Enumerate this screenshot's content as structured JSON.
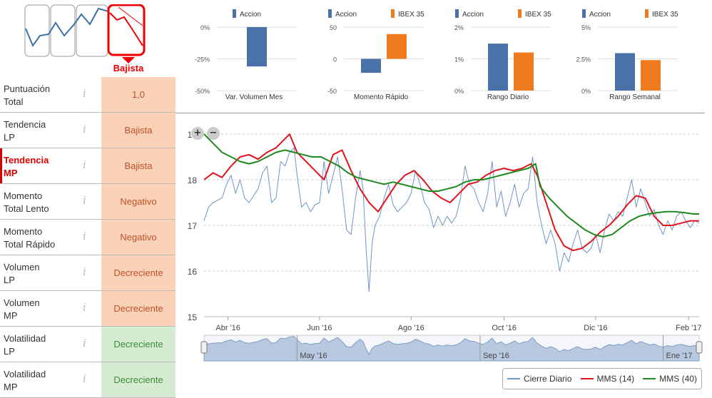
{
  "trend_selector": {
    "selected_label": "Bajista"
  },
  "metrics": [
    {
      "name": "Puntuación\nTotal",
      "value": "1,0",
      "status": "bad",
      "highlight": false
    },
    {
      "name": "Tendencia\nLP",
      "value": "Bajista",
      "status": "bad",
      "highlight": false
    },
    {
      "name": "Tendencia\nMP",
      "value": "Bajista",
      "status": "bad",
      "highlight": true
    },
    {
      "name": "Momento\nTotal Lento",
      "value": "Negativo",
      "status": "bad",
      "highlight": false
    },
    {
      "name": "Momento\nTotal Rápido",
      "value": "Negativo",
      "status": "bad",
      "highlight": false
    },
    {
      "name": "Volumen\nLP",
      "value": "Decreciente",
      "status": "bad",
      "highlight": false
    },
    {
      "name": "Volumen\nMP",
      "value": "Decreciente",
      "status": "bad",
      "highlight": false
    },
    {
      "name": "Volatilidad\nLP",
      "value": "Decreciente",
      "status": "good",
      "highlight": false
    },
    {
      "name": "Volatilidad\nMP",
      "value": "Decreciente",
      "status": "good",
      "highlight": false
    }
  ],
  "info_glyph": "i",
  "colors": {
    "accion": "#4a72a8",
    "ibex": "#f07a1e",
    "cierre": "#6f95c4",
    "mms14": "#e0141e",
    "mms40": "#1f8a1f",
    "navigator": "#b8c8de"
  },
  "chart_data": [
    {
      "type": "bar",
      "title": "Var. Volumen Mes",
      "legend": [
        "Accion"
      ],
      "yticks": [
        "0%",
        "-25%",
        "-50%"
      ],
      "ylim": [
        -50,
        0
      ],
      "series": [
        {
          "name": "Accion",
          "values": [
            -31
          ]
        }
      ]
    },
    {
      "type": "bar",
      "title": "Momento Rápido",
      "legend": [
        "Accion",
        "IBEX 35"
      ],
      "yticks": [
        "50",
        "0",
        "-50"
      ],
      "ylim": [
        -50,
        50
      ],
      "series": [
        {
          "name": "Accion",
          "values": [
            -22
          ]
        },
        {
          "name": "IBEX 35",
          "values": [
            39
          ]
        }
      ]
    },
    {
      "type": "bar",
      "title": "Rango Diario",
      "legend": [
        "Accion",
        "IBEX 35"
      ],
      "yticks": [
        "2%",
        "1%",
        "0%"
      ],
      "ylim": [
        0,
        2
      ],
      "series": [
        {
          "name": "Accion",
          "values": [
            1.48
          ]
        },
        {
          "name": "IBEX 35",
          "values": [
            1.2
          ]
        }
      ]
    },
    {
      "type": "bar",
      "title": "Rango Semanal",
      "legend": [
        "Accion",
        "IBEX 35"
      ],
      "yticks": [
        "5%",
        "2.5%",
        "0%"
      ],
      "ylim": [
        0,
        5
      ],
      "series": [
        {
          "name": "Accion",
          "values": [
            2.95
          ]
        },
        {
          "name": "IBEX 35",
          "values": [
            2.4
          ]
        }
      ]
    },
    {
      "type": "line",
      "title": "",
      "x_range_days": [
        0,
        330
      ],
      "ylim": [
        15,
        19
      ],
      "yticks": [
        "19",
        "18",
        "17",
        "16",
        "15"
      ],
      "xticks": [
        {
          "day": 16,
          "label": "Abr '16"
        },
        {
          "day": 77,
          "label": "Jun '16"
        },
        {
          "day": 138,
          "label": "Ago '16"
        },
        {
          "day": 200,
          "label": "Oct '16"
        },
        {
          "day": 261,
          "label": "Dic '16"
        },
        {
          "day": 323,
          "label": "Feb '17"
        }
      ],
      "navigator_labels": [
        {
          "day": 62,
          "label": "May '16"
        },
        {
          "day": 184,
          "label": "Sep '16"
        },
        {
          "day": 306,
          "label": "Ene '17"
        }
      ],
      "legend": [
        "Cierre Diario",
        "MMS (14)",
        "MMS (40)"
      ],
      "series": [
        {
          "name": "Cierre Diario",
          "points": [
            [
              0,
              17.1
            ],
            [
              3,
              17.4
            ],
            [
              6,
              17.5
            ],
            [
              9,
              17.55
            ],
            [
              12,
              17.6
            ],
            [
              15,
              17.9
            ],
            [
              18,
              18.1
            ],
            [
              21,
              17.7
            ],
            [
              24,
              18.0
            ],
            [
              27,
              17.6
            ],
            [
              30,
              17.5
            ],
            [
              33,
              17.65
            ],
            [
              36,
              17.8
            ],
            [
              39,
              18.15
            ],
            [
              42,
              18.3
            ],
            [
              45,
              17.5
            ],
            [
              48,
              17.6
            ],
            [
              51,
              18.4
            ],
            [
              54,
              18.3
            ],
            [
              57,
              18.6
            ],
            [
              60,
              18.7
            ],
            [
              62,
              18.1
            ],
            [
              65,
              17.4
            ],
            [
              68,
              17.5
            ],
            [
              71,
              17.3
            ],
            [
              74,
              17.45
            ],
            [
              77,
              17.5
            ],
            [
              80,
              18.4
            ],
            [
              83,
              17.7
            ],
            [
              86,
              18.1
            ],
            [
              89,
              18.5
            ],
            [
              92,
              17.8
            ],
            [
              95,
              16.9
            ],
            [
              98,
              16.8
            ],
            [
              101,
              17.6
            ],
            [
              104,
              18.2
            ],
            [
              106,
              17.8
            ],
            [
              108,
              16.5
            ],
            [
              110,
              15.55
            ],
            [
              112,
              16.6
            ],
            [
              114,
              17.0
            ],
            [
              117,
              17.2
            ],
            [
              120,
              17.6
            ],
            [
              123,
              17.9
            ],
            [
              126,
              17.45
            ],
            [
              129,
              17.3
            ],
            [
              132,
              17.4
            ],
            [
              135,
              17.5
            ],
            [
              138,
              17.7
            ],
            [
              141,
              18.2
            ],
            [
              144,
              17.9
            ],
            [
              147,
              17.5
            ],
            [
              150,
              17.35
            ],
            [
              153,
              16.95
            ],
            [
              156,
              17.2
            ],
            [
              159,
              17.0
            ],
            [
              162,
              17.2
            ],
            [
              165,
              17.05
            ],
            [
              168,
              17.2
            ],
            [
              171,
              17.6
            ],
            [
              174,
              18.3
            ],
            [
              177,
              17.9
            ],
            [
              180,
              17.8
            ],
            [
              183,
              17.5
            ],
            [
              186,
              17.3
            ],
            [
              189,
              17.7
            ],
            [
              192,
              18.4
            ],
            [
              195,
              17.4
            ],
            [
              198,
              17.75
            ],
            [
              201,
              17.2
            ],
            [
              204,
              17.5
            ],
            [
              207,
              17.9
            ],
            [
              210,
              17.4
            ],
            [
              213,
              17.7
            ],
            [
              216,
              17.8
            ],
            [
              219,
              18.5
            ],
            [
              222,
              17.5
            ],
            [
              225,
              17.0
            ],
            [
              228,
              16.6
            ],
            [
              231,
              16.9
            ],
            [
              234,
              16.6
            ],
            [
              237,
              16.0
            ],
            [
              240,
              16.4
            ],
            [
              243,
              16.2
            ],
            [
              246,
              16.6
            ],
            [
              249,
              16.9
            ],
            [
              252,
              16.5
            ],
            [
              255,
              16.4
            ],
            [
              258,
              16.5
            ],
            [
              261,
              16.8
            ],
            [
              264,
              16.4
            ],
            [
              267,
              16.9
            ],
            [
              270,
              17.25
            ],
            [
              273,
              17.1
            ],
            [
              276,
              17.3
            ],
            [
              279,
              17.2
            ],
            [
              282,
              17.6
            ],
            [
              285,
              18.0
            ],
            [
              288,
              17.4
            ],
            [
              291,
              17.8
            ],
            [
              294,
              17.5
            ],
            [
              297,
              17.2
            ],
            [
              300,
              17.35
            ],
            [
              303,
              17.0
            ],
            [
              306,
              16.8
            ],
            [
              309,
              17.1
            ],
            [
              312,
              16.9
            ],
            [
              315,
              17.2
            ],
            [
              318,
              17.3
            ],
            [
              321,
              17.1
            ],
            [
              324,
              16.95
            ],
            [
              327,
              17.1
            ],
            [
              330,
              17.05
            ]
          ]
        },
        {
          "name": "MMS (14)",
          "points": [
            [
              0,
              18.0
            ],
            [
              6,
              18.15
            ],
            [
              12,
              18.05
            ],
            [
              18,
              18.3
            ],
            [
              24,
              18.5
            ],
            [
              30,
              18.55
            ],
            [
              36,
              18.45
            ],
            [
              42,
              18.6
            ],
            [
              48,
              18.7
            ],
            [
              54,
              18.9
            ],
            [
              57,
              19.0
            ],
            [
              62,
              18.6
            ],
            [
              68,
              18.4
            ],
            [
              74,
              18.2
            ],
            [
              80,
              18.0
            ],
            [
              86,
              18.55
            ],
            [
              92,
              18.65
            ],
            [
              98,
              18.2
            ],
            [
              104,
              17.8
            ],
            [
              110,
              17.5
            ],
            [
              116,
              17.3
            ],
            [
              122,
              17.6
            ],
            [
              128,
              17.9
            ],
            [
              134,
              18.1
            ],
            [
              140,
              18.2
            ],
            [
              146,
              18.0
            ],
            [
              152,
              17.75
            ],
            [
              158,
              17.6
            ],
            [
              164,
              17.5
            ],
            [
              170,
              17.7
            ],
            [
              176,
              17.9
            ],
            [
              182,
              17.95
            ],
            [
              188,
              18.1
            ],
            [
              194,
              18.2
            ],
            [
              200,
              18.25
            ],
            [
              206,
              18.2
            ],
            [
              212,
              18.25
            ],
            [
              218,
              18.35
            ],
            [
              222,
              18.1
            ],
            [
              228,
              17.5
            ],
            [
              234,
              16.9
            ],
            [
              240,
              16.55
            ],
            [
              246,
              16.45
            ],
            [
              252,
              16.5
            ],
            [
              258,
              16.65
            ],
            [
              264,
              16.85
            ],
            [
              270,
              17.0
            ],
            [
              276,
              17.2
            ],
            [
              282,
              17.45
            ],
            [
              288,
              17.65
            ],
            [
              294,
              17.6
            ],
            [
              300,
              17.2
            ],
            [
              306,
              17.0
            ],
            [
              312,
              17.0
            ],
            [
              318,
              17.05
            ],
            [
              324,
              17.1
            ],
            [
              330,
              17.1
            ]
          ]
        },
        {
          "name": "MMS (40)",
          "points": [
            [
              0,
              19.0
            ],
            [
              6,
              18.8
            ],
            [
              12,
              18.6
            ],
            [
              18,
              18.5
            ],
            [
              24,
              18.4
            ],
            [
              30,
              18.35
            ],
            [
              36,
              18.4
            ],
            [
              42,
              18.5
            ],
            [
              48,
              18.6
            ],
            [
              54,
              18.65
            ],
            [
              60,
              18.6
            ],
            [
              66,
              18.55
            ],
            [
              72,
              18.5
            ],
            [
              78,
              18.5
            ],
            [
              84,
              18.4
            ],
            [
              90,
              18.3
            ],
            [
              96,
              18.15
            ],
            [
              102,
              18.05
            ],
            [
              108,
              18.0
            ],
            [
              114,
              17.95
            ],
            [
              120,
              17.9
            ],
            [
              126,
              17.95
            ],
            [
              132,
              17.9
            ],
            [
              138,
              17.85
            ],
            [
              144,
              17.8
            ],
            [
              150,
              17.75
            ],
            [
              156,
              17.75
            ],
            [
              162,
              17.8
            ],
            [
              168,
              17.85
            ],
            [
              174,
              17.95
            ],
            [
              180,
              18.0
            ],
            [
              186,
              18.0
            ],
            [
              192,
              18.05
            ],
            [
              198,
              18.1
            ],
            [
              204,
              18.15
            ],
            [
              210,
              18.2
            ],
            [
              216,
              18.25
            ],
            [
              221,
              18.35
            ],
            [
              224,
              17.85
            ],
            [
              230,
              17.6
            ],
            [
              236,
              17.4
            ],
            [
              242,
              17.2
            ],
            [
              248,
              17.05
            ],
            [
              254,
              16.9
            ],
            [
              260,
              16.8
            ],
            [
              266,
              16.75
            ],
            [
              272,
              16.8
            ],
            [
              278,
              16.95
            ],
            [
              284,
              17.1
            ],
            [
              290,
              17.2
            ],
            [
              296,
              17.25
            ],
            [
              302,
              17.28
            ],
            [
              308,
              17.3
            ],
            [
              314,
              17.3
            ],
            [
              320,
              17.28
            ],
            [
              326,
              17.25
            ],
            [
              330,
              17.25
            ]
          ]
        }
      ]
    }
  ]
}
